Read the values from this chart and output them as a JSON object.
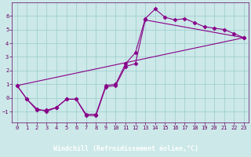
{
  "bg_color": "#cce8e8",
  "plot_bg_color": "#cce8e8",
  "grid_color": "#99cccc",
  "line_color": "#880088",
  "xlabel": "Windchill (Refroidissement éolien,°C)",
  "xlabel_bg": "#660066",
  "xlabel_fg": "#ffffff",
  "tick_color": "#660066",
  "ylim": [
    -1.8,
    7.0
  ],
  "xlim": [
    -0.5,
    23.5
  ],
  "yticks": [
    -1,
    0,
    1,
    2,
    3,
    4,
    5,
    6
  ],
  "xticks": [
    0,
    1,
    2,
    3,
    4,
    5,
    6,
    7,
    8,
    9,
    10,
    11,
    12,
    13,
    14,
    15,
    16,
    17,
    18,
    19,
    20,
    21,
    22,
    23
  ],
  "line1_x": [
    0,
    1,
    2,
    3,
    4,
    5,
    6,
    7,
    8,
    9,
    10,
    11,
    12,
    13,
    14,
    15,
    16,
    17,
    18,
    19,
    20,
    21,
    22,
    23
  ],
  "line1_y": [
    0.9,
    -0.1,
    -0.8,
    -1.0,
    -0.7,
    -0.1,
    -0.1,
    -1.2,
    -1.2,
    0.9,
    1.0,
    2.5,
    3.3,
    5.8,
    6.5,
    5.9,
    5.7,
    5.8,
    5.5,
    5.2,
    5.1,
    5.0,
    4.7,
    4.4
  ],
  "line2_x": [
    0,
    1,
    2,
    3,
    4,
    5,
    6,
    7,
    8,
    9,
    10,
    11,
    12,
    13,
    23
  ],
  "line2_y": [
    0.9,
    -0.1,
    -0.9,
    -0.9,
    -0.7,
    -0.1,
    -0.1,
    -1.3,
    -1.3,
    0.8,
    0.9,
    2.3,
    2.5,
    5.7,
    4.4
  ],
  "line3_x": [
    0,
    23
  ],
  "line3_y": [
    0.9,
    4.4
  ],
  "font_size_tick": 5.0,
  "font_size_label": 6.0,
  "linewidth": 0.8,
  "markersize": 2.5
}
